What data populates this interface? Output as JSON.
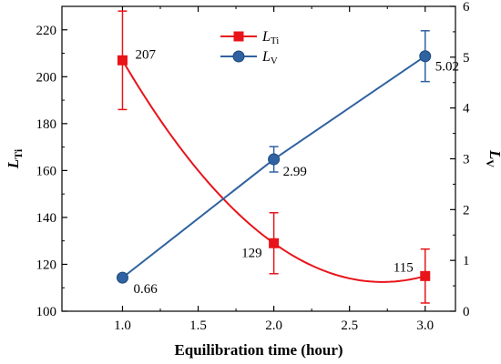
{
  "chart_data": {
    "type": "line",
    "xlabel": "Equilibration time (hour)",
    "ylabel_left": {
      "main": "L",
      "sub": "Ti"
    },
    "ylabel_right": {
      "main": "L",
      "sub": "V"
    },
    "x_ticks": [
      "1.0",
      "1.5",
      "2.0",
      "2.5",
      "3.0"
    ],
    "x_tick_values": [
      1.0,
      1.5,
      2.0,
      2.5,
      3.0
    ],
    "xlim": [
      0.6,
      3.2
    ],
    "y_left_ticks": [
      "100",
      "120",
      "140",
      "160",
      "180",
      "200",
      "220"
    ],
    "y_left_tick_values": [
      100,
      120,
      140,
      160,
      180,
      200,
      220
    ],
    "ylim_left": [
      100,
      230
    ],
    "y_right_ticks": [
      "0",
      "1",
      "2",
      "3",
      "4",
      "5",
      "6"
    ],
    "y_right_tick_values": [
      0,
      1,
      2,
      3,
      4,
      5,
      6
    ],
    "ylim_right": [
      0,
      6
    ],
    "series": [
      {
        "name": {
          "main": "L",
          "sub": "Ti"
        },
        "axis": "left",
        "color": "#e8141a",
        "marker": "square",
        "curve": "smooth",
        "x": [
          1.0,
          2.0,
          3.0
        ],
        "y": [
          207,
          129,
          115
        ],
        "err": [
          21,
          13,
          11.5
        ],
        "labels": [
          "207",
          "129",
          "115"
        ]
      },
      {
        "name": {
          "main": "L",
          "sub": "V"
        },
        "axis": "right",
        "color": "#2f62a0",
        "marker": "circle",
        "curve": "linear",
        "x": [
          1.0,
          2.0,
          3.0
        ],
        "y": [
          0.66,
          2.99,
          5.02
        ],
        "err": [
          0,
          0.25,
          0.5
        ],
        "labels": [
          "0.66",
          "2.99",
          "5.02"
        ]
      }
    ],
    "legend": "top-center",
    "grid": false
  }
}
